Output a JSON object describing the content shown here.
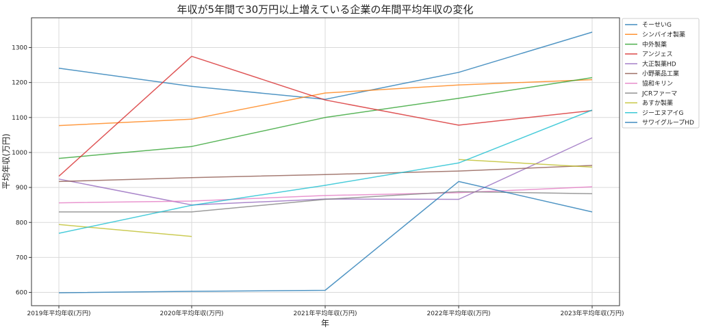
{
  "chart_data": {
    "type": "line",
    "title": "年収が5年間で30万円以上増えている企業の年間平均年収の変化",
    "xlabel": "年",
    "ylabel": "平均年収(万円)",
    "categories": [
      "2019年平均年収(万円)",
      "2020年平均年収(万円)",
      "2021年平均年収(万円)",
      "2022年平均年収(万円)",
      "2023年平均年収(万円)"
    ],
    "ylim": [
      562,
      1385
    ],
    "yticks": [
      600,
      700,
      800,
      900,
      1000,
      1100,
      1200,
      1300
    ],
    "grid": true,
    "legend_position": "right",
    "series": [
      {
        "name": "そーせいG",
        "color": "#1f77b4",
        "values": [
          1241,
          1189,
          1152,
          1229,
          1344
        ]
      },
      {
        "name": "シンバイオ製薬",
        "color": "#ff7f0e",
        "values": [
          1077,
          1095,
          1170,
          1193,
          1208
        ]
      },
      {
        "name": "中外製薬",
        "color": "#2ca02c",
        "values": [
          983,
          1017,
          1100,
          1155,
          1214
        ]
      },
      {
        "name": "アンジェス",
        "color": "#d62728",
        "values": [
          932,
          1275,
          1150,
          1078,
          1120
        ]
      },
      {
        "name": "大正製薬HD",
        "color": "#9467bd",
        "values": [
          924,
          850,
          867,
          866,
          1042
        ]
      },
      {
        "name": "小野薬品工業",
        "color": "#8c564b",
        "values": [
          917,
          928,
          937,
          947,
          963
        ]
      },
      {
        "name": "協和キリン",
        "color": "#e377c2",
        "values": [
          856,
          861,
          877,
          885,
          902
        ]
      },
      {
        "name": "JCRファーマ",
        "color": "#7f7f7f",
        "values": [
          830,
          830,
          866,
          888,
          882
        ]
      },
      {
        "name": "あすか製薬",
        "color": "#bcbd22",
        "values": [
          794,
          760,
          null,
          980,
          958
        ]
      },
      {
        "name": "ジーエヌアイG",
        "color": "#17becf",
        "values": [
          769,
          849,
          906,
          970,
          1121
        ]
      },
      {
        "name": "サワイグループHD",
        "color": "#1f77b4",
        "values": [
          599,
          603,
          606,
          917,
          830
        ]
      }
    ]
  }
}
